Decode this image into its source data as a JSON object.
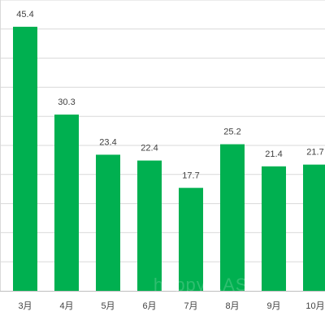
{
  "chart_data": {
    "type": "bar",
    "categories": [
      "3月",
      "4月",
      "5月",
      "6月",
      "7月",
      "8月",
      "9月",
      "10月"
    ],
    "values": [
      45.4,
      30.3,
      23.4,
      22.4,
      17.7,
      25.2,
      21.4,
      21.7
    ],
    "ylim": [
      0,
      50
    ],
    "grid": true,
    "bar_color": "#00b050",
    "legend": "none"
  }
}
